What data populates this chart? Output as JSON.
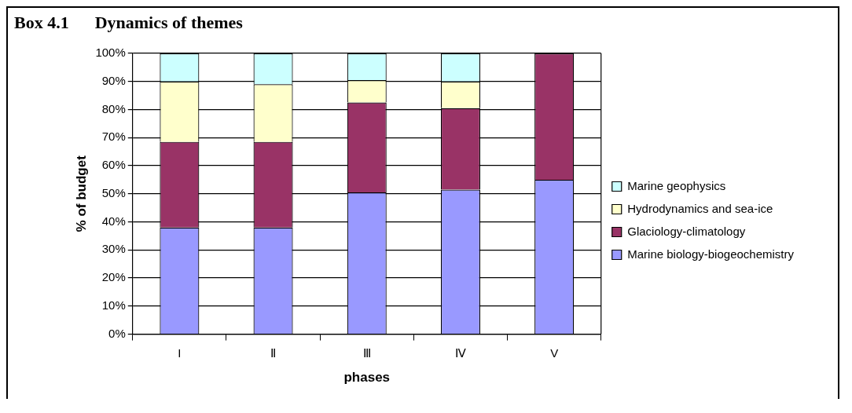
{
  "chart_data": {
    "type": "bar",
    "title": "Box 4.1      Dynamics of themes",
    "xlabel": "phases",
    "ylabel": "% of budget",
    "categories": [
      "I",
      "Ⅱ",
      "Ⅲ",
      "Ⅳ",
      "V"
    ],
    "series": [
      {
        "name": "Marine biology-biogeochemistry",
        "color": "#9999ff",
        "values": [
          38,
          38,
          50.5,
          51.5,
          55
        ]
      },
      {
        "name": "Glaciology-climatology",
        "color": "#993366",
        "values": [
          30.5,
          30.5,
          32,
          29,
          45
        ]
      },
      {
        "name": "Hydrodynamics and sea-ice",
        "color": "#ffffcc",
        "values": [
          21.5,
          20.5,
          8,
          9.5,
          0
        ]
      },
      {
        "name": "Marine geophysics",
        "color": "#ccffff",
        "values": [
          10,
          11,
          9.5,
          10,
          0
        ]
      }
    ],
    "stacked": true,
    "ylim": [
      0,
      100
    ],
    "yticks": [
      {
        "value": 0,
        "label": "0%"
      },
      {
        "value": 10,
        "label": "10%"
      },
      {
        "value": 20,
        "label": "20%"
      },
      {
        "value": 30,
        "label": "30%"
      },
      {
        "value": 40,
        "label": "40%"
      },
      {
        "value": 50,
        "label": "50%"
      },
      {
        "value": 60,
        "label": "60%"
      },
      {
        "value": 70,
        "label": "70%"
      },
      {
        "value": 80,
        "label": "80%"
      },
      {
        "value": 90,
        "label": "90%"
      },
      {
        "value": 100,
        "label": "100%"
      }
    ],
    "grid": "y",
    "legend": "right"
  }
}
